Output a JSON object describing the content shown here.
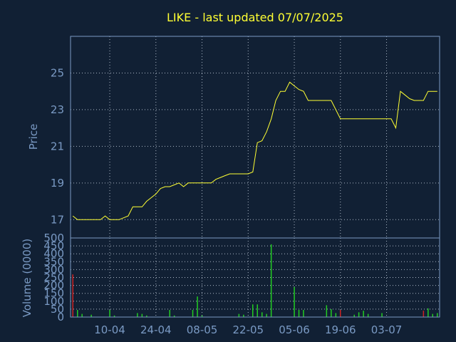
{
  "chart_data": [
    {
      "type": "line",
      "title": "LIKE - last updated 07/07/2025",
      "ylabel": "Price",
      "ylim": [
        16.0,
        27.0
      ],
      "yticks": [
        17,
        19,
        21,
        23,
        25
      ],
      "xtick_labels": [
        "10-04",
        "24-04",
        "08-05",
        "22-05",
        "05-06",
        "19-06",
        "03-07"
      ],
      "xtick_index": [
        8,
        18,
        28,
        38,
        48,
        58,
        68
      ],
      "grid": true,
      "color": "#ffff33",
      "series": [
        {
          "values": [
            17.2,
            17.0,
            17.0,
            17.0,
            17.0,
            17.0,
            17.0,
            17.2,
            17.0,
            17.0,
            17.0,
            17.1,
            17.2,
            17.7,
            17.7,
            17.7,
            18.0,
            18.2,
            18.4,
            18.7,
            18.8,
            18.8,
            18.9,
            19.0,
            18.8,
            19.0,
            19.0,
            19.0,
            19.0,
            19.0,
            19.0,
            19.2,
            19.3,
            19.4,
            19.5,
            19.5,
            19.5,
            19.5,
            19.5,
            19.6,
            21.2,
            21.3,
            21.8,
            22.5,
            23.5,
            24.0,
            24.0,
            24.5,
            24.3,
            24.1,
            24.0,
            23.5,
            23.5,
            23.5,
            23.5,
            23.5,
            23.5,
            23.0,
            22.5,
            22.5,
            22.5,
            22.5,
            22.5,
            22.5,
            22.5,
            22.5,
            22.5,
            22.5,
            22.5,
            22.5,
            22.0,
            24.0,
            23.8,
            23.6,
            23.5,
            23.5,
            23.5,
            24.0,
            24.0,
            24.0
          ]
        }
      ]
    },
    {
      "type": "bar",
      "ylabel": "Volume (0000)",
      "ylim": [
        0,
        500
      ],
      "yticks": [
        0,
        50,
        100,
        150,
        200,
        250,
        300,
        350,
        400,
        450,
        500
      ],
      "grid": true,
      "up_color": "#22cc22",
      "down_color": "#cc2222",
      "series": [
        {
          "values": [
            270,
            45,
            20,
            0,
            15,
            0,
            0,
            0,
            45,
            10,
            0,
            0,
            0,
            0,
            25,
            20,
            10,
            0,
            0,
            0,
            0,
            45,
            10,
            0,
            0,
            0,
            45,
            130,
            10,
            0,
            0,
            0,
            0,
            0,
            0,
            0,
            20,
            15,
            0,
            80,
            80,
            30,
            20,
            460,
            0,
            0,
            0,
            0,
            190,
            45,
            45,
            0,
            0,
            0,
            0,
            75,
            50,
            25,
            45,
            0,
            0,
            15,
            30,
            40,
            20,
            0,
            0,
            25,
            0,
            0,
            0,
            0,
            0,
            0,
            0,
            0,
            40,
            55,
            20,
            25
          ],
          "down": [
            true,
            false,
            false,
            false,
            false,
            false,
            false,
            false,
            false,
            false,
            false,
            false,
            false,
            false,
            false,
            false,
            false,
            false,
            false,
            false,
            false,
            false,
            false,
            false,
            false,
            false,
            false,
            false,
            false,
            false,
            false,
            false,
            false,
            false,
            false,
            false,
            false,
            false,
            false,
            false,
            false,
            false,
            false,
            false,
            false,
            false,
            false,
            false,
            false,
            false,
            false,
            false,
            false,
            false,
            false,
            false,
            false,
            false,
            true,
            false,
            false,
            false,
            false,
            false,
            false,
            false,
            false,
            false,
            false,
            false,
            false,
            false,
            false,
            false,
            false,
            false,
            true,
            false,
            false,
            false
          ]
        }
      ]
    }
  ]
}
